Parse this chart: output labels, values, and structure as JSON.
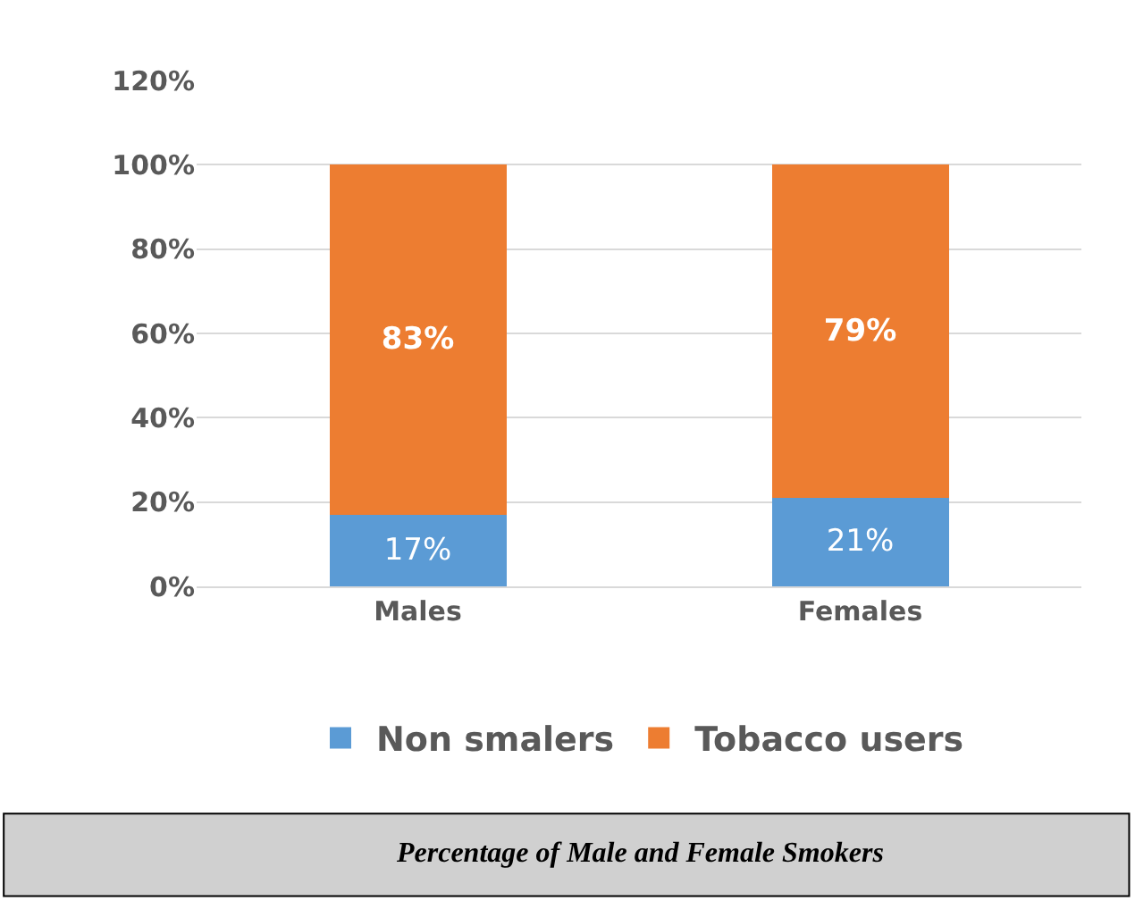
{
  "chart_data": {
    "type": "bar",
    "stacked": true,
    "categories": [
      "Males",
      "Females"
    ],
    "series": [
      {
        "name": "Non smalers",
        "color": "#5b9bd5",
        "values": [
          17,
          21
        ],
        "value_labels": [
          "17%",
          "21%"
        ]
      },
      {
        "name": "Tobacco users",
        "color": "#ed7d31",
        "values": [
          83,
          79
        ],
        "value_labels": [
          "83%",
          "79%"
        ]
      }
    ],
    "ylim": [
      0,
      120
    ],
    "yticks": [
      {
        "value": 0,
        "label": "0%"
      },
      {
        "value": 20,
        "label": "20%"
      },
      {
        "value": 40,
        "label": "40%"
      },
      {
        "value": 60,
        "label": "60%"
      },
      {
        "value": 80,
        "label": "80%"
      },
      {
        "value": 100,
        "label": "100%"
      },
      {
        "value": 120,
        "label": "120%"
      }
    ],
    "grid": "y",
    "legend": "bottom",
    "annotations": [
      "Percentage of Male and Female Smokers"
    ]
  }
}
